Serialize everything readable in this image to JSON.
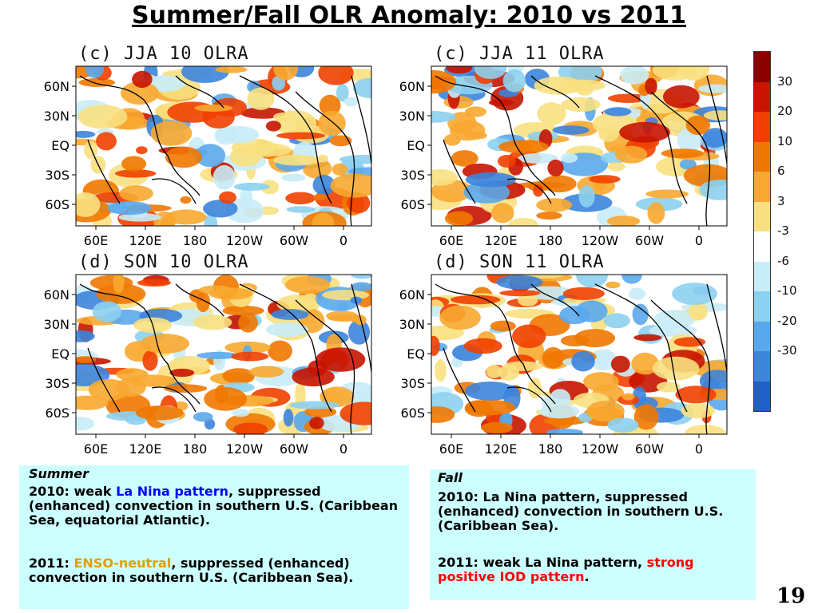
{
  "title": "Summer/Fall OLR Anomaly: 2010 vs 2011",
  "panels": [
    {
      "label": "(c) JJA 10 OLRA",
      "seed": 11
    },
    {
      "label": "(c) JJA 11 OLRA",
      "seed": 23
    },
    {
      "label": "(d) SON 10 OLRA",
      "seed": 37
    },
    {
      "label": "(d) SON 11 OLRA",
      "seed": 53
    }
  ],
  "lat_labels": [
    "60N",
    "30N",
    "EQ",
    "30S",
    "60S"
  ],
  "lon_labels": [
    "60E",
    "120E",
    "180",
    "120W",
    "60W",
    "0"
  ],
  "colorbar": {
    "labels": [
      "30",
      "20",
      "10",
      "6",
      "3",
      "-3",
      "-6",
      "-10",
      "-20",
      "-30"
    ],
    "colors": [
      "#8b0000",
      "#c81400",
      "#f04000",
      "#f07800",
      "#f8a830",
      "#f8e080",
      "#ffffff",
      "#c8ecf8",
      "#8cd0f0",
      "#5aa8ec",
      "#3c84dc",
      "#2060c8"
    ]
  },
  "summer": {
    "heading": "Summer",
    "p1_a": "2010: weak ",
    "p1_b": "La Nina pattern",
    "p1_c": ", suppressed (enhanced) convection in southern U.S. (Caribbean Sea, equatorial Atlantic).",
    "p2_a": "2011: ",
    "p2_b": "ENSO-neutral",
    "p2_c": ", suppressed (enhanced) convection in southern U.S. (Caribbean Sea)."
  },
  "fall": {
    "heading": "Fall",
    "p1": "2010: La Nina pattern, suppressed (enhanced) convection in southern U.S. (Caribbean Sea).",
    "p2_a": "2011: weak La Nina pattern, ",
    "p2_b": "strong positive IOD pattern",
    "p2_c": "."
  },
  "page_number": "19"
}
